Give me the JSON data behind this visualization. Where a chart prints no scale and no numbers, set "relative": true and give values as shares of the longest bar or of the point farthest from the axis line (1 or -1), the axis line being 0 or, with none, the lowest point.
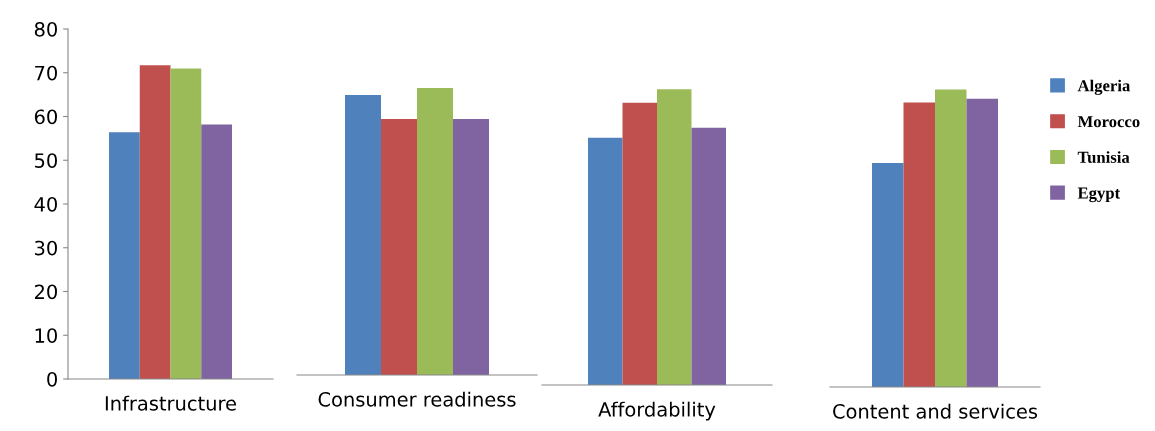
{
  "chart_data": [
    {
      "type": "bar",
      "categories": [
        "Infrastructure"
      ],
      "ylim": [
        0,
        80
      ],
      "yticks": [
        0,
        10,
        20,
        30,
        40,
        50,
        60,
        70,
        80
      ],
      "series": [
        {
          "color": "#4f81bd",
          "values": [
            56.4
          ]
        },
        {
          "color": "#c0504d",
          "values": [
            71.7
          ]
        },
        {
          "color": "#9bbb59",
          "values": [
            71.0
          ]
        },
        {
          "color": "#8064a2",
          "values": [
            58.2
          ]
        }
      ]
    },
    {
      "type": "bar",
      "categories": [
        "Consumer readiness"
      ],
      "relative": true,
      "series": [
        {
          "color": "#4f81bd",
          "values": [
            0.976
          ]
        },
        {
          "color": "#c0504d",
          "values": [
            0.892
          ]
        },
        {
          "color": "#9bbb59",
          "values": [
            1
          ]
        },
        {
          "color": "#8064a2",
          "values": [
            0.892
          ]
        }
      ]
    },
    {
      "type": "bar",
      "categories": [
        "Affordability"
      ],
      "relative": true,
      "series": [
        {
          "color": "#4f81bd",
          "values": [
            0.836
          ]
        },
        {
          "color": "#c0504d",
          "values": [
            0.955
          ]
        },
        {
          "color": "#9bbb59",
          "values": [
            1
          ]
        },
        {
          "color": "#8064a2",
          "values": [
            0.87
          ]
        }
      ]
    },
    {
      "type": "bar",
      "categories": [
        "Content and services"
      ],
      "relative": true,
      "legend": "right",
      "series": [
        {
          "name": "Algeria",
          "color": "#4f81bd",
          "values": [
            0.753
          ]
        },
        {
          "name": "Morocco",
          "color": "#c0504d",
          "values": [
            0.957
          ]
        },
        {
          "name": "Tunisia",
          "color": "#9bbb59",
          "values": [
            1
          ]
        },
        {
          "name": "Egypt",
          "color": "#8064a2",
          "values": [
            0.969
          ]
        }
      ]
    }
  ]
}
